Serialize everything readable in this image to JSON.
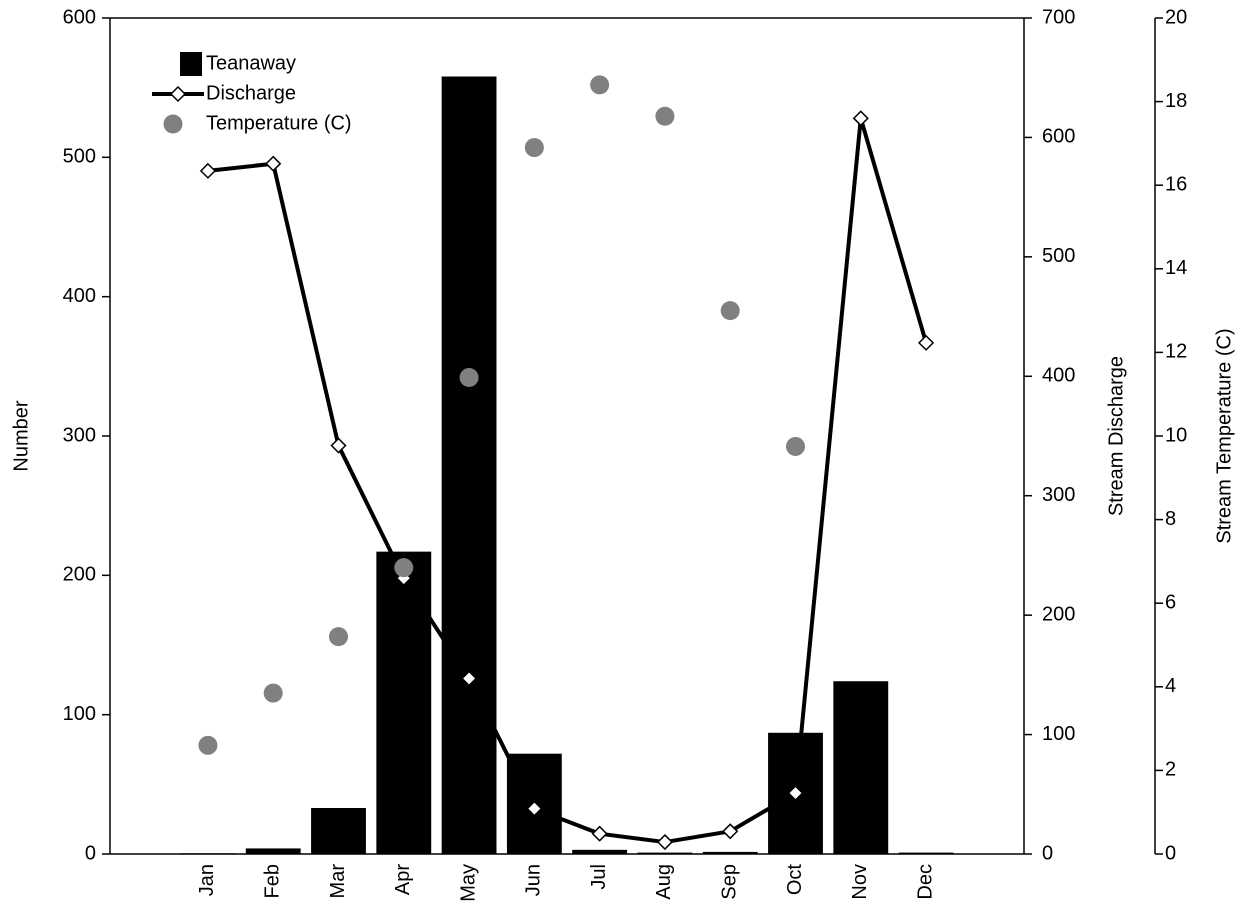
{
  "chart_data": {
    "type": "bar-line-scatter",
    "categories": [
      "Jan",
      "Feb",
      "Mar",
      "Apr",
      "May",
      "Jun",
      "Jul",
      "Aug",
      "Sep",
      "Oct",
      "Nov",
      "Dec"
    ],
    "ylabel": "Number",
    "y2label": "Stream Discharge",
    "y3label": "Stream Temperature (C)",
    "ylim": [
      0,
      600
    ],
    "yticks": [
      0,
      100,
      200,
      300,
      400,
      500,
      600
    ],
    "y2lim": [
      0,
      700
    ],
    "y2ticks": [
      0,
      100,
      200,
      300,
      400,
      500,
      600,
      700
    ],
    "y3lim": [
      0,
      20
    ],
    "y3ticks": [
      0,
      2,
      4,
      6,
      8,
      10,
      12,
      14,
      16,
      18,
      20
    ],
    "series": [
      {
        "name": "Teanaway",
        "type": "bar",
        "color": "#000000",
        "axis": "y",
        "values": [
          0.5,
          4,
          33,
          217,
          558,
          72,
          3,
          1,
          1.5,
          87,
          124,
          1
        ]
      },
      {
        "name": "Discharge",
        "type": "line",
        "color": "#000000",
        "axis": "y2",
        "values": [
          572,
          578,
          342,
          231,
          147,
          38,
          17,
          10,
          19,
          51,
          616,
          428
        ]
      },
      {
        "name": "Temperature (C)",
        "type": "scatter",
        "color": "#808080",
        "axis": "y3",
        "values": [
          2.6,
          3.85,
          5.2,
          6.85,
          11.4,
          16.9,
          18.4,
          17.65,
          13.0,
          9.75,
          null,
          null
        ]
      }
    ]
  }
}
